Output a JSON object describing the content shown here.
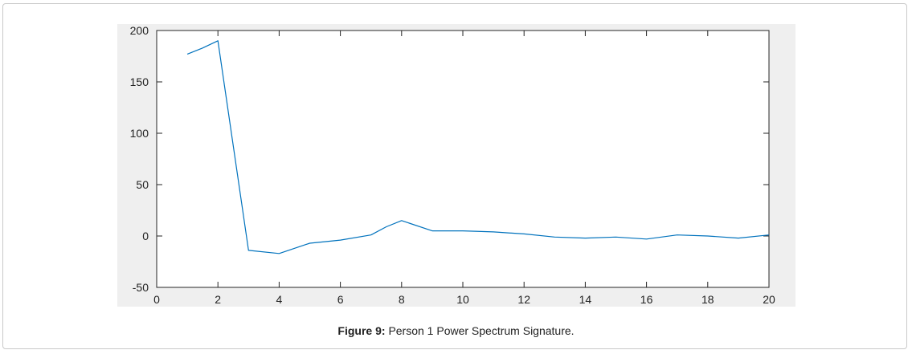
{
  "figure": {
    "label": "Figure 9:",
    "caption": "Person 1 Power Spectrum Signature."
  },
  "chart_data": {
    "type": "line",
    "title": "",
    "xlabel": "",
    "ylabel": "",
    "xlim": [
      0,
      20
    ],
    "ylim": [
      -50,
      200
    ],
    "xticks": [
      0,
      2,
      4,
      6,
      8,
      10,
      12,
      14,
      16,
      18,
      20
    ],
    "yticks": [
      -50,
      0,
      50,
      100,
      150,
      200
    ],
    "grid": false,
    "line_color": "#0072bd",
    "series": [
      {
        "x": [
          1,
          1.5,
          2,
          3,
          4,
          5,
          6,
          7,
          7.5,
          8,
          9,
          10,
          11,
          12,
          13,
          14,
          15,
          16,
          17,
          18,
          19,
          20
        ],
        "y": [
          177,
          183,
          190,
          -14,
          -17,
          -7,
          -4,
          1,
          9,
          15,
          5,
          5,
          4,
          2,
          -1,
          -2,
          -1,
          -3,
          1,
          0,
          -2,
          1
        ]
      }
    ]
  }
}
